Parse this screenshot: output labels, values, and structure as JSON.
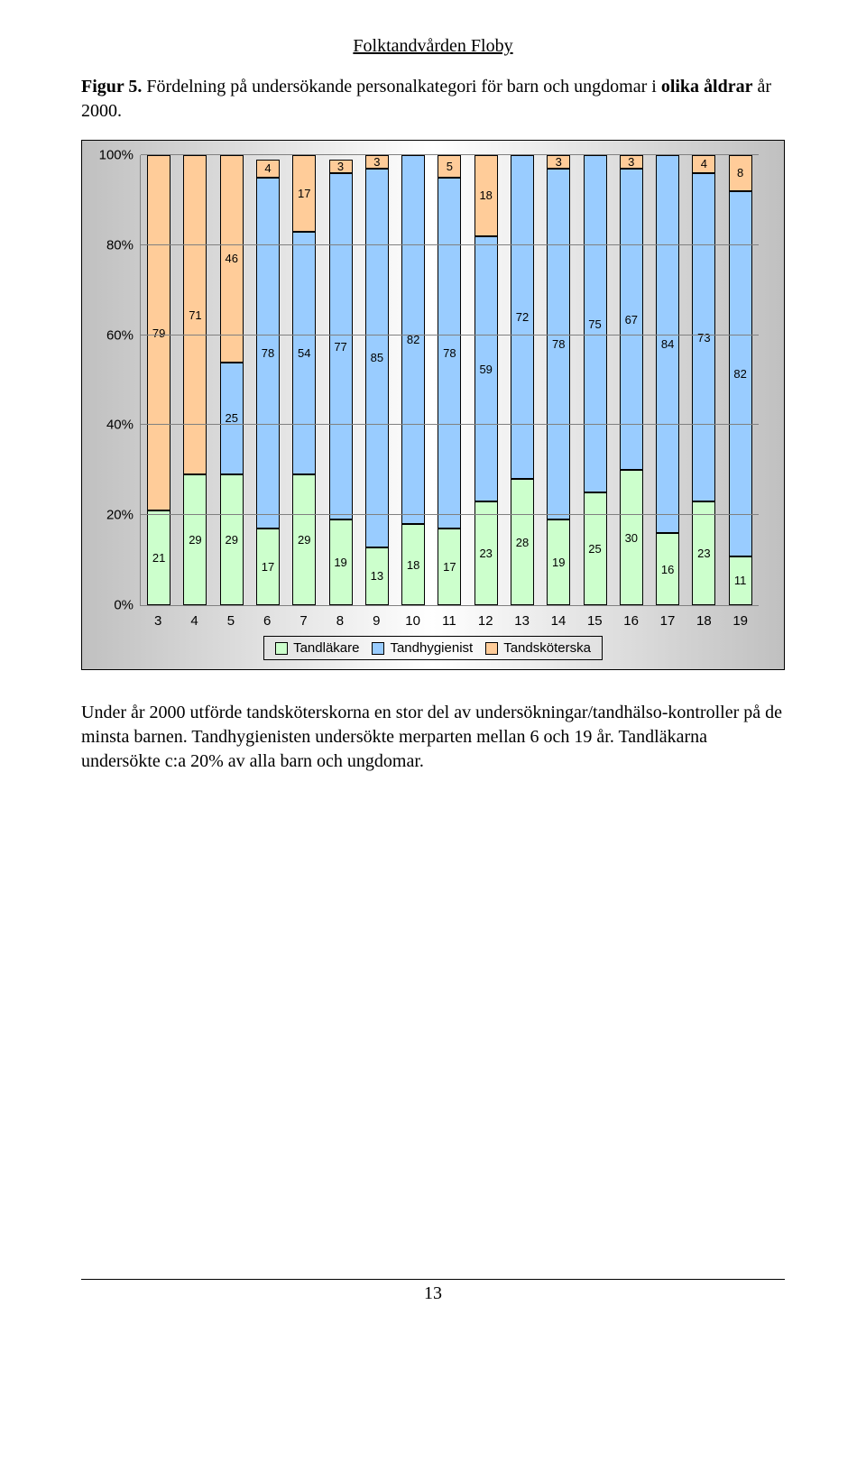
{
  "header": {
    "title": "Folktandvården Floby"
  },
  "figure": {
    "label_prefix": "Figur 5.",
    "caption_rest": " Fördelning på undersökande personalkategori för barn och ungdomar i ",
    "bold_word": "olika åldrar",
    "caption_tail": " år 2000."
  },
  "chart": {
    "type": "stacked-bar-100",
    "ylabel_ticks": [
      "0%",
      "20%",
      "40%",
      "60%",
      "80%",
      "100%"
    ],
    "categories": [
      "3",
      "4",
      "5",
      "6",
      "7",
      "8",
      "9",
      "10",
      "11",
      "12",
      "13",
      "14",
      "15",
      "16",
      "17",
      "18",
      "19"
    ],
    "series": [
      {
        "name": "Tandläkare",
        "color": "#ccffcc"
      },
      {
        "name": "Tandhygienist",
        "color": "#99ccff"
      },
      {
        "name": "Tandsköterska",
        "color": "#ffcc99"
      }
    ],
    "background_gradient": [
      "#c0c0c0",
      "#ffffff",
      "#c0c0c0"
    ],
    "grid_color": "#808080",
    "border_color": "#000000",
    "label_font": "Arial",
    "label_fontsize": 13,
    "axis_fontsize": 15,
    "data": [
      {
        "x": "3",
        "tandlakare": 21,
        "tandhygienist": 0,
        "tandskoterska": 79
      },
      {
        "x": "4",
        "tandlakare": 29,
        "tandhygienist": 0,
        "tandskoterska": 71
      },
      {
        "x": "5",
        "tandlakare": 29,
        "tandhygienist": 25,
        "tandskoterska": 46
      },
      {
        "x": "6",
        "tandlakare": 17,
        "tandhygienist": 78,
        "tandskoterska": 4
      },
      {
        "x": "7",
        "tandlakare": 29,
        "tandhygienist": 54,
        "tandskoterska": 17
      },
      {
        "x": "8",
        "tandlakare": 19,
        "tandhygienist": 77,
        "tandskoterska": 3
      },
      {
        "x": "9",
        "tandlakare": 13,
        "tandhygienist": 85,
        "tandskoterska": 3
      },
      {
        "x": "10",
        "tandlakare": 18,
        "tandhygienist": 82,
        "tandskoterska": 0
      },
      {
        "x": "11",
        "tandlakare": 17,
        "tandhygienist": 78,
        "tandskoterska": 5
      },
      {
        "x": "12",
        "tandlakare": 23,
        "tandhygienist": 59,
        "tandskoterska": 18
      },
      {
        "x": "13",
        "tandlakare": 28,
        "tandhygienist": 72,
        "tandskoterska": 0
      },
      {
        "x": "14",
        "tandlakare": 19,
        "tandhygienist": 78,
        "tandskoterska": 3
      },
      {
        "x": "15",
        "tandlakare": 25,
        "tandhygienist": 75,
        "tandskoterska": 0
      },
      {
        "x": "16",
        "tandlakare": 30,
        "tandhygienist": 67,
        "tandskoterska": 3
      },
      {
        "x": "17",
        "tandlakare": 16,
        "tandhygienist": 84,
        "tandskoterska": 0
      },
      {
        "x": "18",
        "tandlakare": 23,
        "tandhygienist": 73,
        "tandskoterska": 4
      },
      {
        "x": "19",
        "tandlakare": 11,
        "tandhygienist": 82,
        "tandskoterska": 8
      }
    ],
    "legend_labels": {
      "tandlakare": "Tandläkare",
      "tandhygienist": "Tandhygienist",
      "tandskoterska": "Tandsköterska"
    }
  },
  "body": {
    "text": "Under år 2000 utförde tandsköterskorna en stor del av undersökningar/tandhälso-\nkontroller på de minsta barnen. Tandhygienisten undersökte merparten mellan 6 och 19 år. Tandläkarna undersökte c:a 20% av alla barn och ungdomar."
  },
  "footer": {
    "page_number": "13"
  }
}
